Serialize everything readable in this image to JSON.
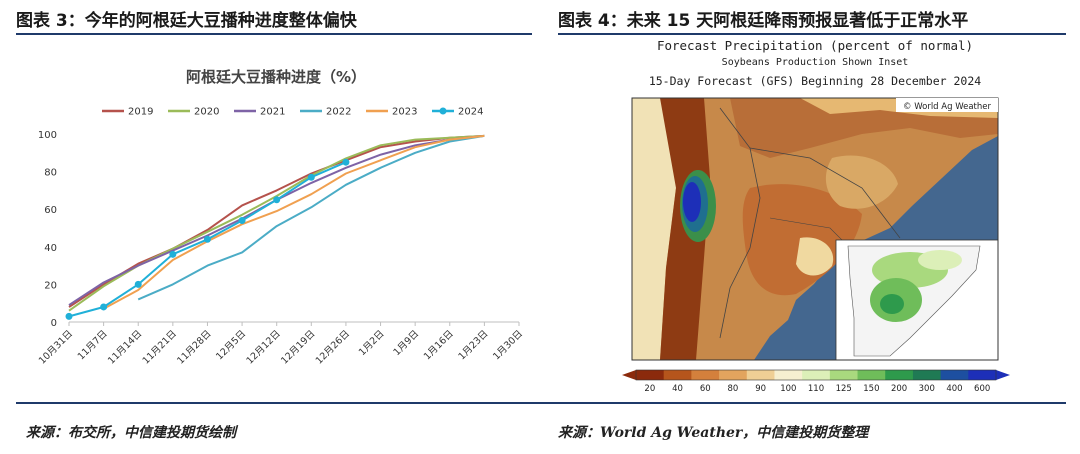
{
  "left_panel": {
    "figure_title": "图表 3：今年的阿根廷大豆播种进度整体偏快",
    "source": "来源：布交所，中信建投期货绘制"
  },
  "right_panel": {
    "figure_title": "图表 4：未来 15 天阿根廷降雨预报显著低于正常水平",
    "source": "来源：World Ag Weather，中信建投期货整理",
    "map": {
      "title_line1": "Forecast Precipitation (percent of normal)",
      "title_line2": "Soybeans Production Shown Inset",
      "title_line3": "15-Day Forecast (GFS) Beginning 28 December 2024",
      "credit": "© World Ag Weather",
      "colorbar_labels": [
        "20",
        "40",
        "60",
        "80",
        "90",
        "100",
        "110",
        "125",
        "150",
        "200",
        "300",
        "400",
        "600"
      ],
      "colorbar_colors": [
        "#8b2a0c",
        "#b5551c",
        "#d4803c",
        "#e2a45e",
        "#efcf95",
        "#f6efd0",
        "#dcefb8",
        "#a9d97e",
        "#6fbd5a",
        "#2e9a4c",
        "#1f7a54",
        "#1d4fa0",
        "#1d2fb8"
      ]
    }
  },
  "chart_data": {
    "type": "line",
    "title": "阿根廷大豆播种进度（%）",
    "categories": [
      "10月31日",
      "11月7日",
      "11月14日",
      "11月21日",
      "11月28日",
      "12月5日",
      "12月12日",
      "12月19日",
      "12月26日",
      "1月2日",
      "1月9日",
      "1月16日",
      "1月23日",
      "1月30日"
    ],
    "ylim": [
      0,
      100
    ],
    "yticks": [
      0,
      20,
      40,
      60,
      80,
      100
    ],
    "legend_position": "top",
    "series": [
      {
        "name": "2019",
        "color": "#b5524c",
        "values": [
          8,
          20,
          31,
          39,
          49,
          62,
          70,
          79,
          86,
          93,
          96,
          98,
          99,
          null
        ]
      },
      {
        "name": "2020",
        "color": "#9bbb59",
        "values": [
          6,
          19,
          30,
          39,
          48,
          57,
          67,
          78,
          87,
          94,
          97,
          98,
          99,
          null
        ]
      },
      {
        "name": "2021",
        "color": "#7e63a6",
        "values": [
          9,
          21,
          30,
          38,
          46,
          55,
          65,
          74,
          82,
          89,
          94,
          97,
          99,
          null
        ]
      },
      {
        "name": "2022",
        "color": "#4bacc6",
        "values": [
          null,
          null,
          12,
          20,
          30,
          37,
          51,
          61,
          73,
          82,
          90,
          96,
          99,
          null
        ]
      },
      {
        "name": "2023",
        "color": "#f0a050",
        "values": [
          null,
          7,
          17,
          33,
          43,
          52,
          59,
          68,
          79,
          86,
          93,
          97,
          99,
          null
        ]
      },
      {
        "name": "2024",
        "color": "#20b0d8",
        "marker": true,
        "values": [
          3,
          8,
          20,
          36,
          44,
          54,
          65,
          77,
          85,
          null,
          null,
          null,
          null,
          null
        ]
      }
    ]
  }
}
